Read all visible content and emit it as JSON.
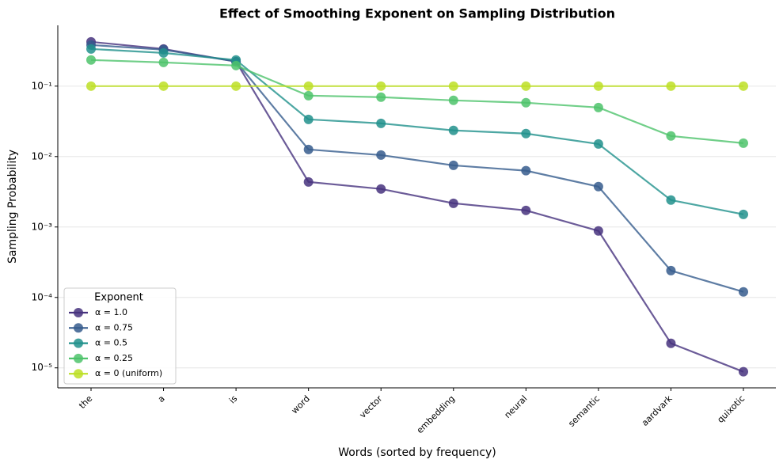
{
  "chart_data": {
    "type": "line",
    "title": "Effect of Smoothing Exponent on Sampling Distribution",
    "x_label": "Words (sorted by frequency)",
    "y_label": "Sampling Probability",
    "categories": [
      "the",
      "a",
      "is",
      "word",
      "vector",
      "embedding",
      "neural",
      "semantic",
      "aardvark",
      "quixotic"
    ],
    "y_scale": "log",
    "ylim": [
      5.2e-06,
      0.73
    ],
    "yticks": [
      {
        "value": 1e-05,
        "label": "10⁻⁵"
      },
      {
        "value": 0.0001,
        "label": "10⁻⁴"
      },
      {
        "value": 0.001,
        "label": "10⁻³"
      },
      {
        "value": 0.01,
        "label": "10⁻²"
      },
      {
        "value": 0.1,
        "label": "10⁻¹"
      }
    ],
    "grid": true,
    "legend_title": "Exponent",
    "legend_position": "lower left",
    "series": [
      {
        "name": "α = 1.0",
        "color": "#46327e",
        "values": [
          0.425,
          0.337,
          0.223,
          0.00436,
          0.00347,
          0.00217,
          0.00172,
          0.00088,
          2.23e-05,
          8.8e-06
        ]
      },
      {
        "name": "α = 0.75",
        "color": "#365c8d",
        "values": [
          0.384,
          0.329,
          0.223,
          0.0126,
          0.0105,
          0.0075,
          0.0063,
          0.00374,
          0.00024,
          0.00012
        ]
      },
      {
        "name": "α = 0.5",
        "color": "#21918c",
        "values": [
          0.337,
          0.296,
          0.235,
          0.0337,
          0.0296,
          0.0235,
          0.0212,
          0.0151,
          0.00241,
          0.00151
        ]
      },
      {
        "name": "α = 0.25",
        "color": "#4ec36b",
        "values": [
          0.235,
          0.217,
          0.196,
          0.0733,
          0.0697,
          0.0628,
          0.0581,
          0.0497,
          0.0196,
          0.0155
        ]
      },
      {
        "name": "α = 0 (uniform)",
        "color": "#bddf26",
        "values": [
          0.1,
          0.1,
          0.1,
          0.1,
          0.1,
          0.1,
          0.1,
          0.1,
          0.1,
          0.1
        ]
      }
    ]
  }
}
